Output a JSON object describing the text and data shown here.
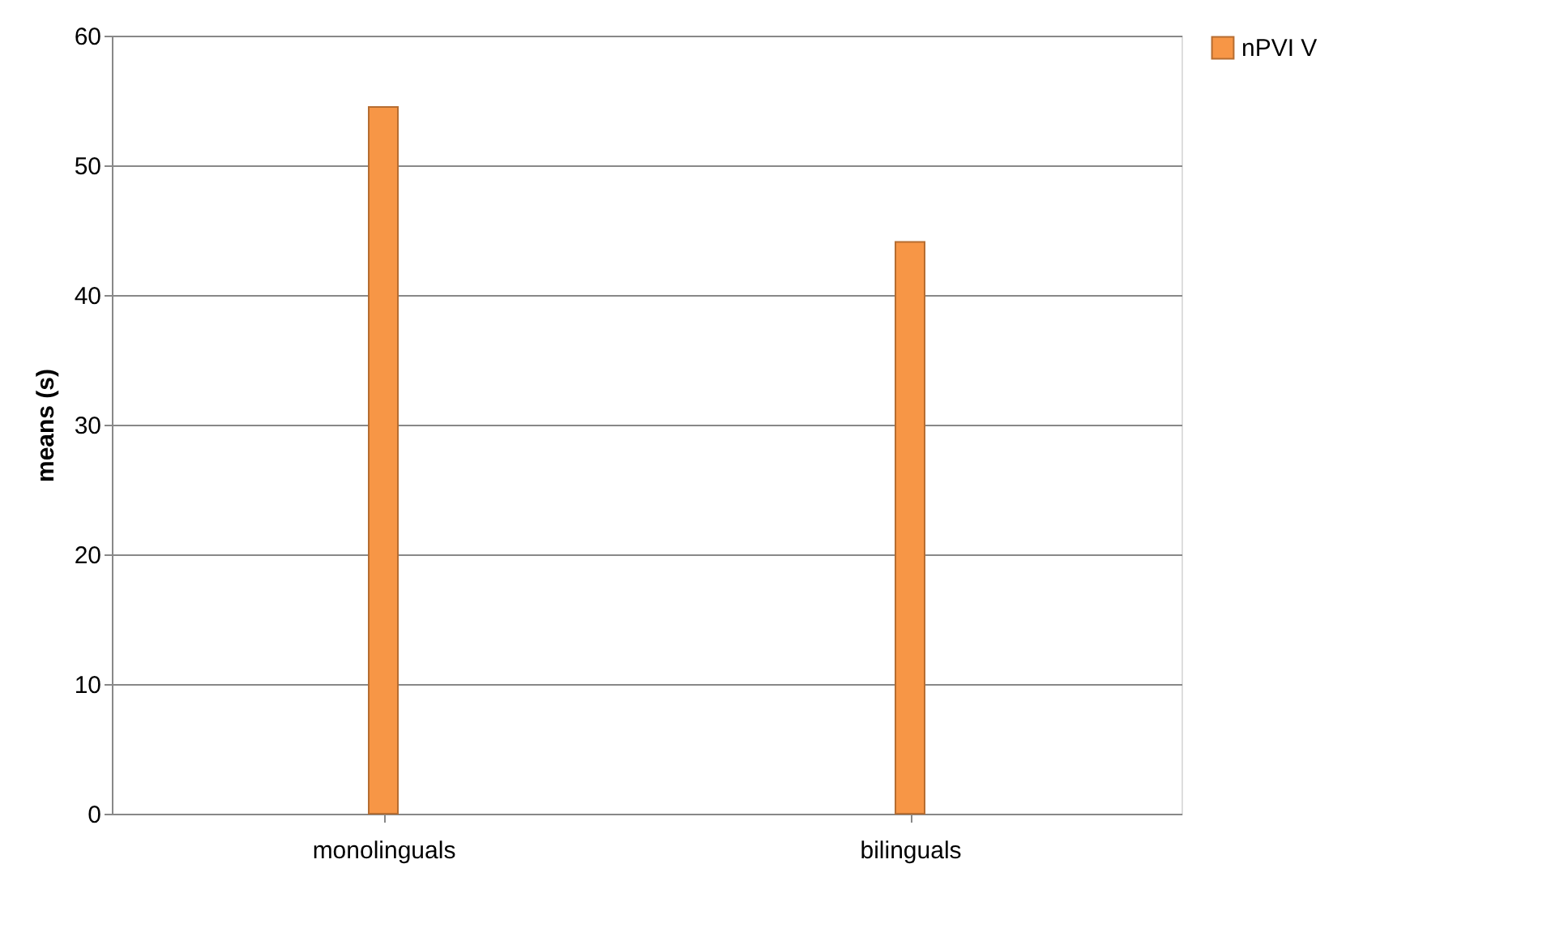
{
  "chart_data": {
    "type": "bar",
    "ylabel": "means (s)",
    "categories": [
      "monolinguals",
      "bilinguals"
    ],
    "series": [
      {
        "name": "nPVI V",
        "color": "#f79646",
        "values": [
          54.5,
          44.1
        ]
      }
    ],
    "ylim": [
      0,
      60
    ],
    "yticks": [
      0,
      10,
      20,
      30,
      40,
      50,
      60
    ],
    "grid": "y",
    "legend": "right"
  }
}
